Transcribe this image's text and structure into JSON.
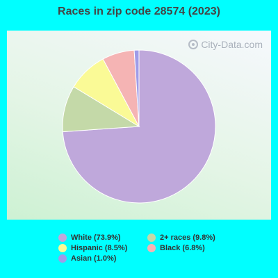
{
  "chart_data": {
    "type": "pie",
    "title": "Races in zip code 28574 (2023)",
    "slices": [
      {
        "label": "White",
        "value": 73.9,
        "legend": "White (73.9%)",
        "color": "#bfa8db"
      },
      {
        "label": "2+ races",
        "value": 9.8,
        "legend": "2+ races (9.8%)",
        "color": "#c4d9a8"
      },
      {
        "label": "Hispanic",
        "value": 8.5,
        "legend": "Hispanic (8.5%)",
        "color": "#fafa96"
      },
      {
        "label": "Black",
        "value": 6.8,
        "legend": "Black (6.8%)",
        "color": "#f5b4b4"
      },
      {
        "label": "Asian",
        "value": 1.0,
        "legend": "Asian (1.0%)",
        "color": "#9f9ce8"
      }
    ],
    "legend_position": "bottom"
  },
  "watermark": {
    "text": "City-Data.com",
    "icon": "city-data-logo-icon"
  }
}
